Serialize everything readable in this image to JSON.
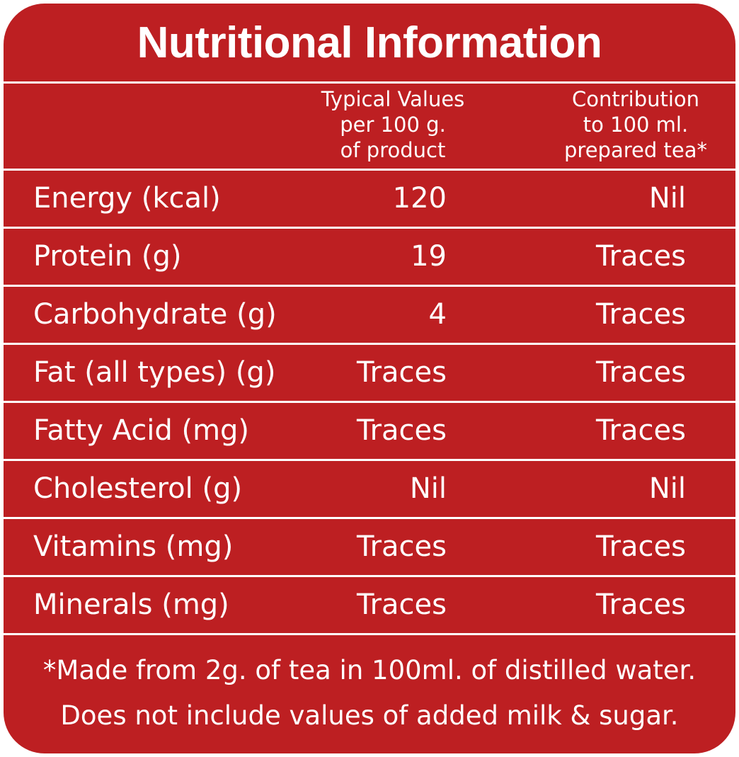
{
  "title": "Nutritional Information",
  "columns": {
    "per_100g": "Typical Values\nper 100 g.\nof product",
    "per_100ml": "Contribution\nto 100 ml.\nprepared tea*"
  },
  "rows": [
    {
      "label": "Energy (kcal)",
      "per_100g": "120",
      "per_100ml": "Nil"
    },
    {
      "label": "Protein (g)",
      "per_100g": "19",
      "per_100ml": "Traces"
    },
    {
      "label": "Carbohydrate (g)",
      "per_100g": "4",
      "per_100ml": "Traces"
    },
    {
      "label": "Fat (all types) (g)",
      "per_100g": "Traces",
      "per_100ml": "Traces"
    },
    {
      "label": "Fatty Acid (mg)",
      "per_100g": "Traces",
      "per_100ml": "Traces"
    },
    {
      "label": "Cholesterol (g)",
      "per_100g": "Nil",
      "per_100ml": "Nil"
    },
    {
      "label": "Vitamins (mg)",
      "per_100g": "Traces",
      "per_100ml": "Traces"
    },
    {
      "label": "Minerals (mg)",
      "per_100g": "Traces",
      "per_100ml": "Traces"
    }
  ],
  "footnote": {
    "line1": "*Made from 2g. of tea in 100ml. of distilled water.",
    "line2": "Does not include values of added milk & sugar."
  },
  "colors": {
    "panel": "#bd1f22",
    "text": "#ffffff",
    "divider": "#ffffff"
  }
}
